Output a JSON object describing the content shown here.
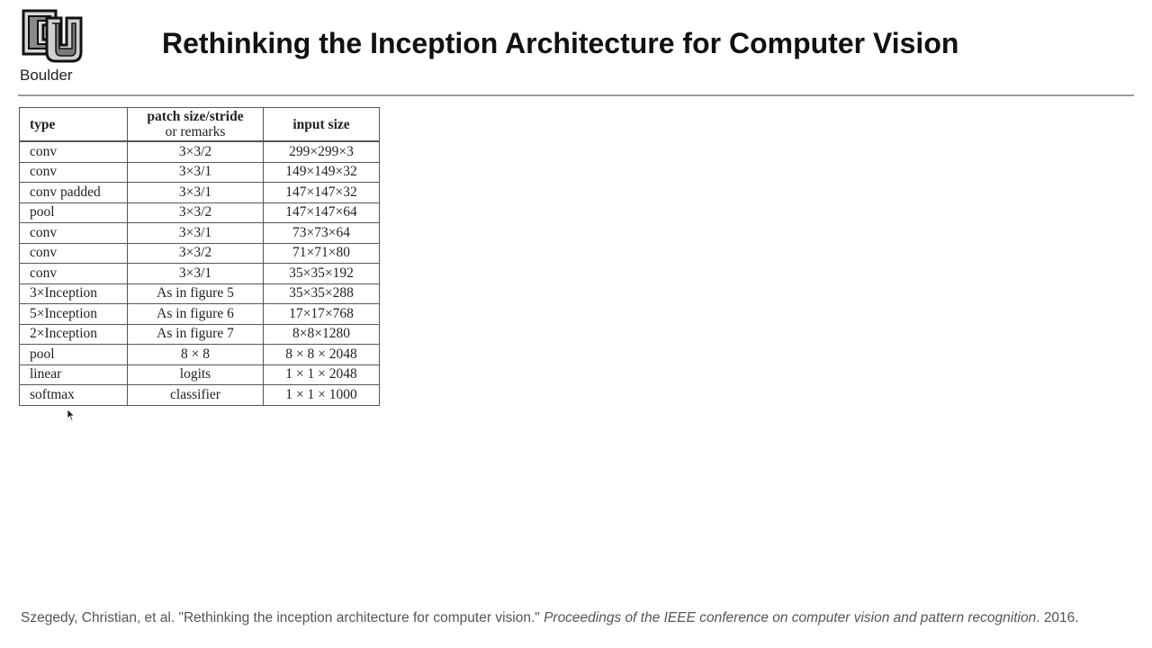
{
  "header": {
    "logo_text": "Boulder",
    "title": "Rethinking the Inception Architecture for Computer Vision"
  },
  "table": {
    "headers": {
      "type": "type",
      "patch_line1": "patch size/stride",
      "patch_line2": "or remarks",
      "input": "input size"
    },
    "rows": [
      {
        "type": "conv",
        "patch": "3×3/2",
        "input": "299×299×3"
      },
      {
        "type": "conv",
        "patch": "3×3/1",
        "input": "149×149×32"
      },
      {
        "type": "conv padded",
        "patch": "3×3/1",
        "input": "147×147×32"
      },
      {
        "type": "pool",
        "patch": "3×3/2",
        "input": "147×147×64"
      },
      {
        "type": "conv",
        "patch": "3×3/1",
        "input": "73×73×64"
      },
      {
        "type": "conv",
        "patch": "3×3/2",
        "input": "71×71×80"
      },
      {
        "type": "conv",
        "patch": "3×3/1",
        "input": "35×35×192"
      },
      {
        "type": "3×Inception",
        "patch": "As in figure 5",
        "input": "35×35×288"
      },
      {
        "type": "5×Inception",
        "patch": "As in figure 6",
        "input": "17×17×768"
      },
      {
        "type": "2×Inception",
        "patch": "As in figure 7",
        "input": "8×8×1280"
      },
      {
        "type": "pool",
        "patch": "8 × 8",
        "input": "8 × 8 × 2048"
      },
      {
        "type": "linear",
        "patch": "logits",
        "input": "1 × 1 × 2048"
      },
      {
        "type": "softmax",
        "patch": "classifier",
        "input": "1 × 1 × 1000"
      }
    ]
  },
  "citation": {
    "prefix": "Szegedy, Christian, et al. \"Rethinking the inception architecture for computer vision.\" ",
    "venue": "Proceedings of the IEEE conference on computer vision and pattern recognition",
    "suffix": ". 2016."
  }
}
